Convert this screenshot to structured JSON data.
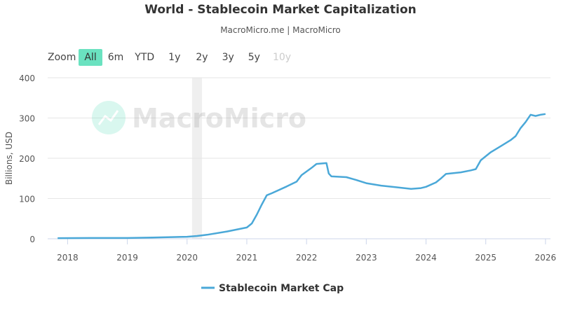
{
  "header": {
    "title": "World - Stablecoin Market Capitalization",
    "subtitle": "MacroMicro.me | MacroMicro"
  },
  "zoom": {
    "label": "Zoom",
    "buttons": [
      "All",
      "6m",
      "YTD",
      "1y",
      "2y",
      "3y",
      "5y",
      "10y"
    ],
    "active": "All",
    "disabled": [
      "10y"
    ]
  },
  "watermark": "MacroMicro",
  "chart_data": {
    "type": "line",
    "title": "World - Stablecoin Market Capitalization",
    "ylabel": "Billions, USD",
    "xlabel": "",
    "ylim": [
      0,
      400
    ],
    "yticks": [
      0,
      100,
      200,
      300,
      400
    ],
    "xticks": [
      "2018",
      "2019",
      "2020",
      "2021",
      "2022",
      "2023",
      "2024",
      "2025",
      "2026"
    ],
    "xlim": [
      "2017-09",
      "2026-02"
    ],
    "grid": true,
    "legend": "bottom",
    "shaded_band": {
      "from": "2020-02",
      "to": "2020-04"
    },
    "series": [
      {
        "name": "Stablecoin Market Cap",
        "color": "#4aa8d8",
        "x": [
          "2017-11",
          "2018-06",
          "2019-01",
          "2019-06",
          "2020-01",
          "2020-03",
          "2020-05",
          "2020-09",
          "2021-01",
          "2021-02",
          "2021-03",
          "2021-04",
          "2021-05",
          "2021-06",
          "2021-09",
          "2021-11",
          "2021-12",
          "2022-02",
          "2022-03",
          "2022-05",
          "2022-05-15",
          "2022-06",
          "2022-09",
          "2022-11",
          "2023-01",
          "2023-04",
          "2023-07",
          "2023-10",
          "2023-12",
          "2024-01",
          "2024-03",
          "2024-04",
          "2024-05",
          "2024-08",
          "2024-10",
          "2024-11",
          "2024-12",
          "2025-01",
          "2025-02",
          "2025-04",
          "2025-06",
          "2025-07",
          "2025-08",
          "2025-09",
          "2025-10",
          "2025-11",
          "2025-12",
          "2026-01"
        ],
        "values": [
          1.5,
          2,
          2,
          3,
          5,
          7,
          10,
          18,
          28,
          38,
          60,
          85,
          108,
          113,
          130,
          142,
          158,
          176,
          186,
          188,
          162,
          155,
          153,
          146,
          138,
          132,
          128,
          124,
          126,
          129,
          140,
          150,
          161,
          165,
          170,
          173,
          195,
          205,
          215,
          230,
          245,
          255,
          275,
          290,
          308,
          305,
          308,
          310
        ]
      }
    ]
  }
}
